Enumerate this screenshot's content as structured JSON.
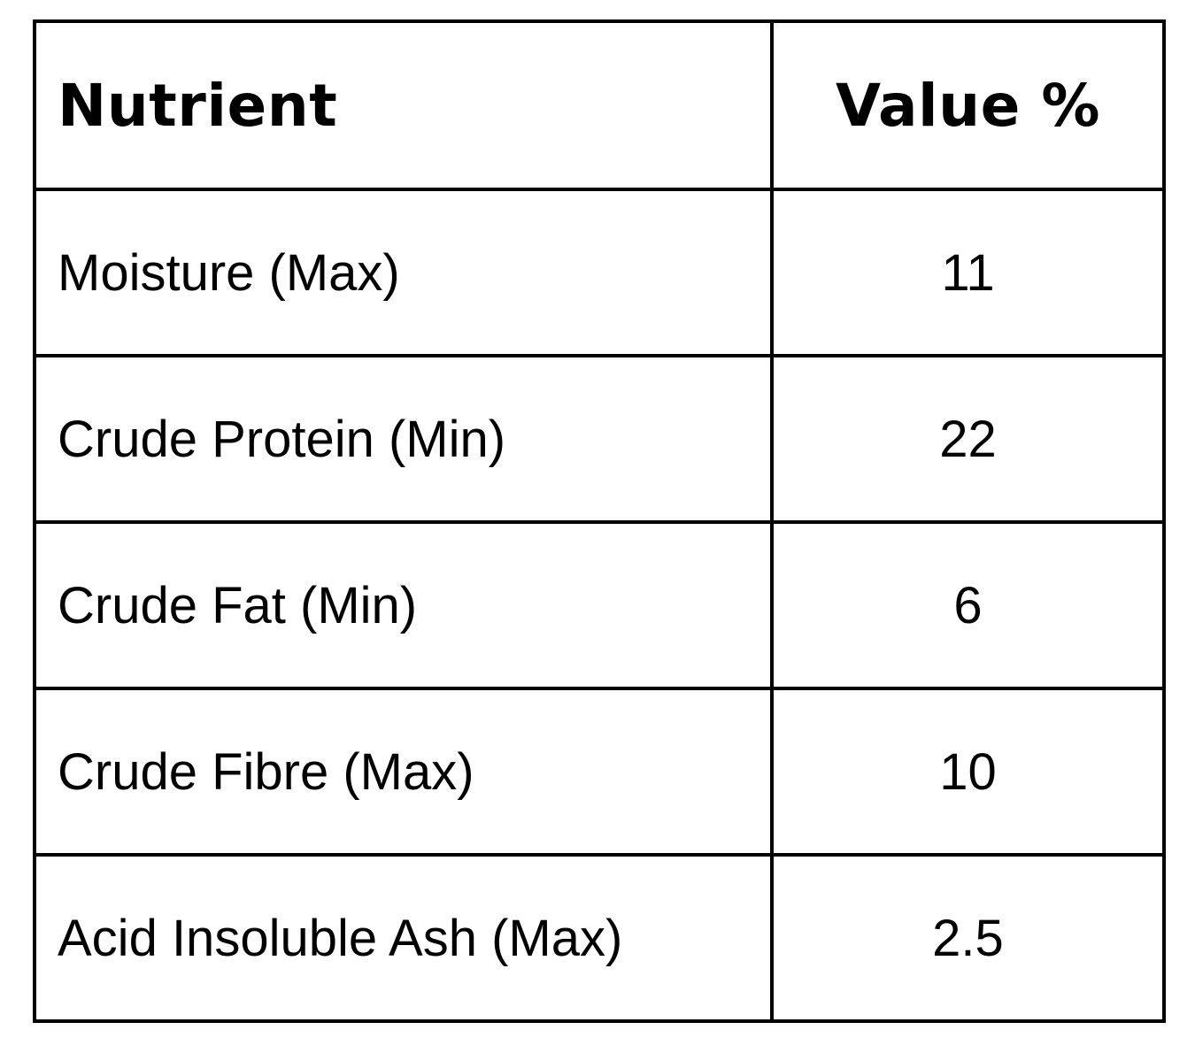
{
  "table": {
    "columns": [
      {
        "label": "Nutrient"
      },
      {
        "label": "Value %"
      }
    ],
    "rows": [
      {
        "nutrient": "Moisture (Max)",
        "value": "11"
      },
      {
        "nutrient": "Crude Protein (Min)",
        "value": "22"
      },
      {
        "nutrient": "Crude Fat (Min)",
        "value": "6"
      },
      {
        "nutrient": "Crude Fibre (Max)",
        "value": "10"
      },
      {
        "nutrient": "Acid Insoluble Ash (Max)",
        "value": "2.5"
      }
    ],
    "colors": {
      "border": "#000000",
      "text": "#000000",
      "background": "#ffffff"
    }
  }
}
